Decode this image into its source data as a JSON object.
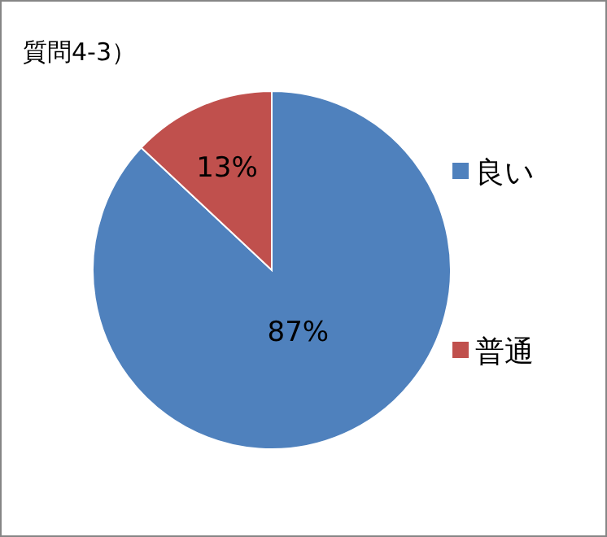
{
  "chart_data": {
    "type": "pie",
    "title": "質問4-3）",
    "categories": [
      "良い",
      "普通"
    ],
    "values": [
      87,
      13
    ],
    "colors": [
      "#4f81bd",
      "#c0504d"
    ],
    "value_labels": [
      "87%",
      "13%"
    ],
    "legend": "right"
  }
}
